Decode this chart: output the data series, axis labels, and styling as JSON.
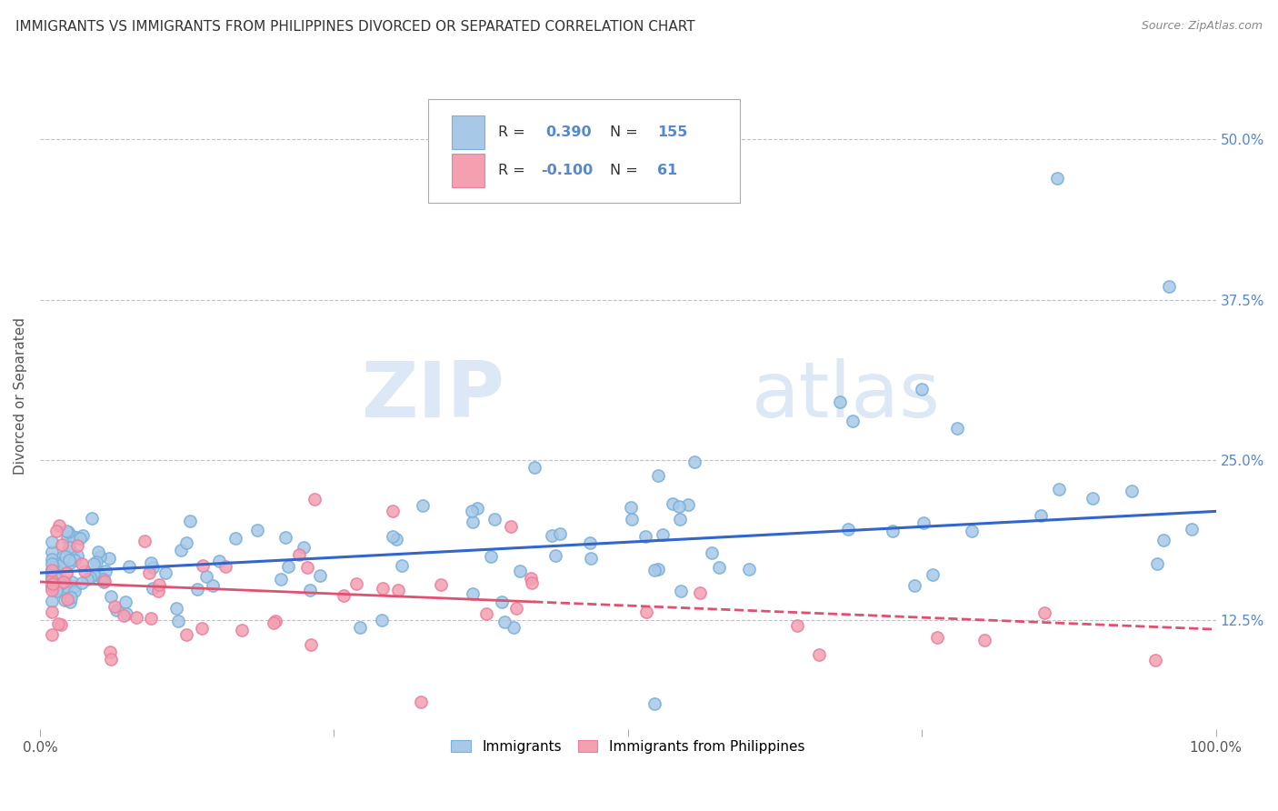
{
  "title": "IMMIGRANTS VS IMMIGRANTS FROM PHILIPPINES DIVORCED OR SEPARATED CORRELATION CHART",
  "source": "Source: ZipAtlas.com",
  "ylabel": "Divorced or Separated",
  "watermark_zip": "ZIP",
  "watermark_atlas": "atlas",
  "blue_R": 0.39,
  "blue_N": 155,
  "pink_R": -0.1,
  "pink_N": 61,
  "blue_color": "#a8c8e8",
  "pink_color": "#f4a0b0",
  "blue_edge_color": "#7ab0d8",
  "pink_edge_color": "#e880a0",
  "blue_line_color": "#3366cc",
  "pink_line_color": "#e05070",
  "background_color": "#ffffff",
  "grid_color": "#bbbbbb",
  "xlim": [
    0.0,
    1.0
  ],
  "ylim": [
    0.04,
    0.56
  ],
  "y_ticks": [
    0.125,
    0.25,
    0.375,
    0.5
  ],
  "y_tick_labels": [
    "12.5%",
    "25.0%",
    "37.5%",
    "50.0%"
  ],
  "legend_label_blue": "Immigrants",
  "legend_label_pink": "Immigrants from Philippines",
  "blue_line_y_start": 0.162,
  "blue_line_y_end": 0.21,
  "pink_line_y_start": 0.155,
  "pink_line_y_end": 0.118,
  "pink_line_solid_end_x": 0.42,
  "watermark_color": "#dce8f5",
  "title_color": "#333333",
  "source_color": "#888888",
  "right_tick_color": "#5588cc"
}
